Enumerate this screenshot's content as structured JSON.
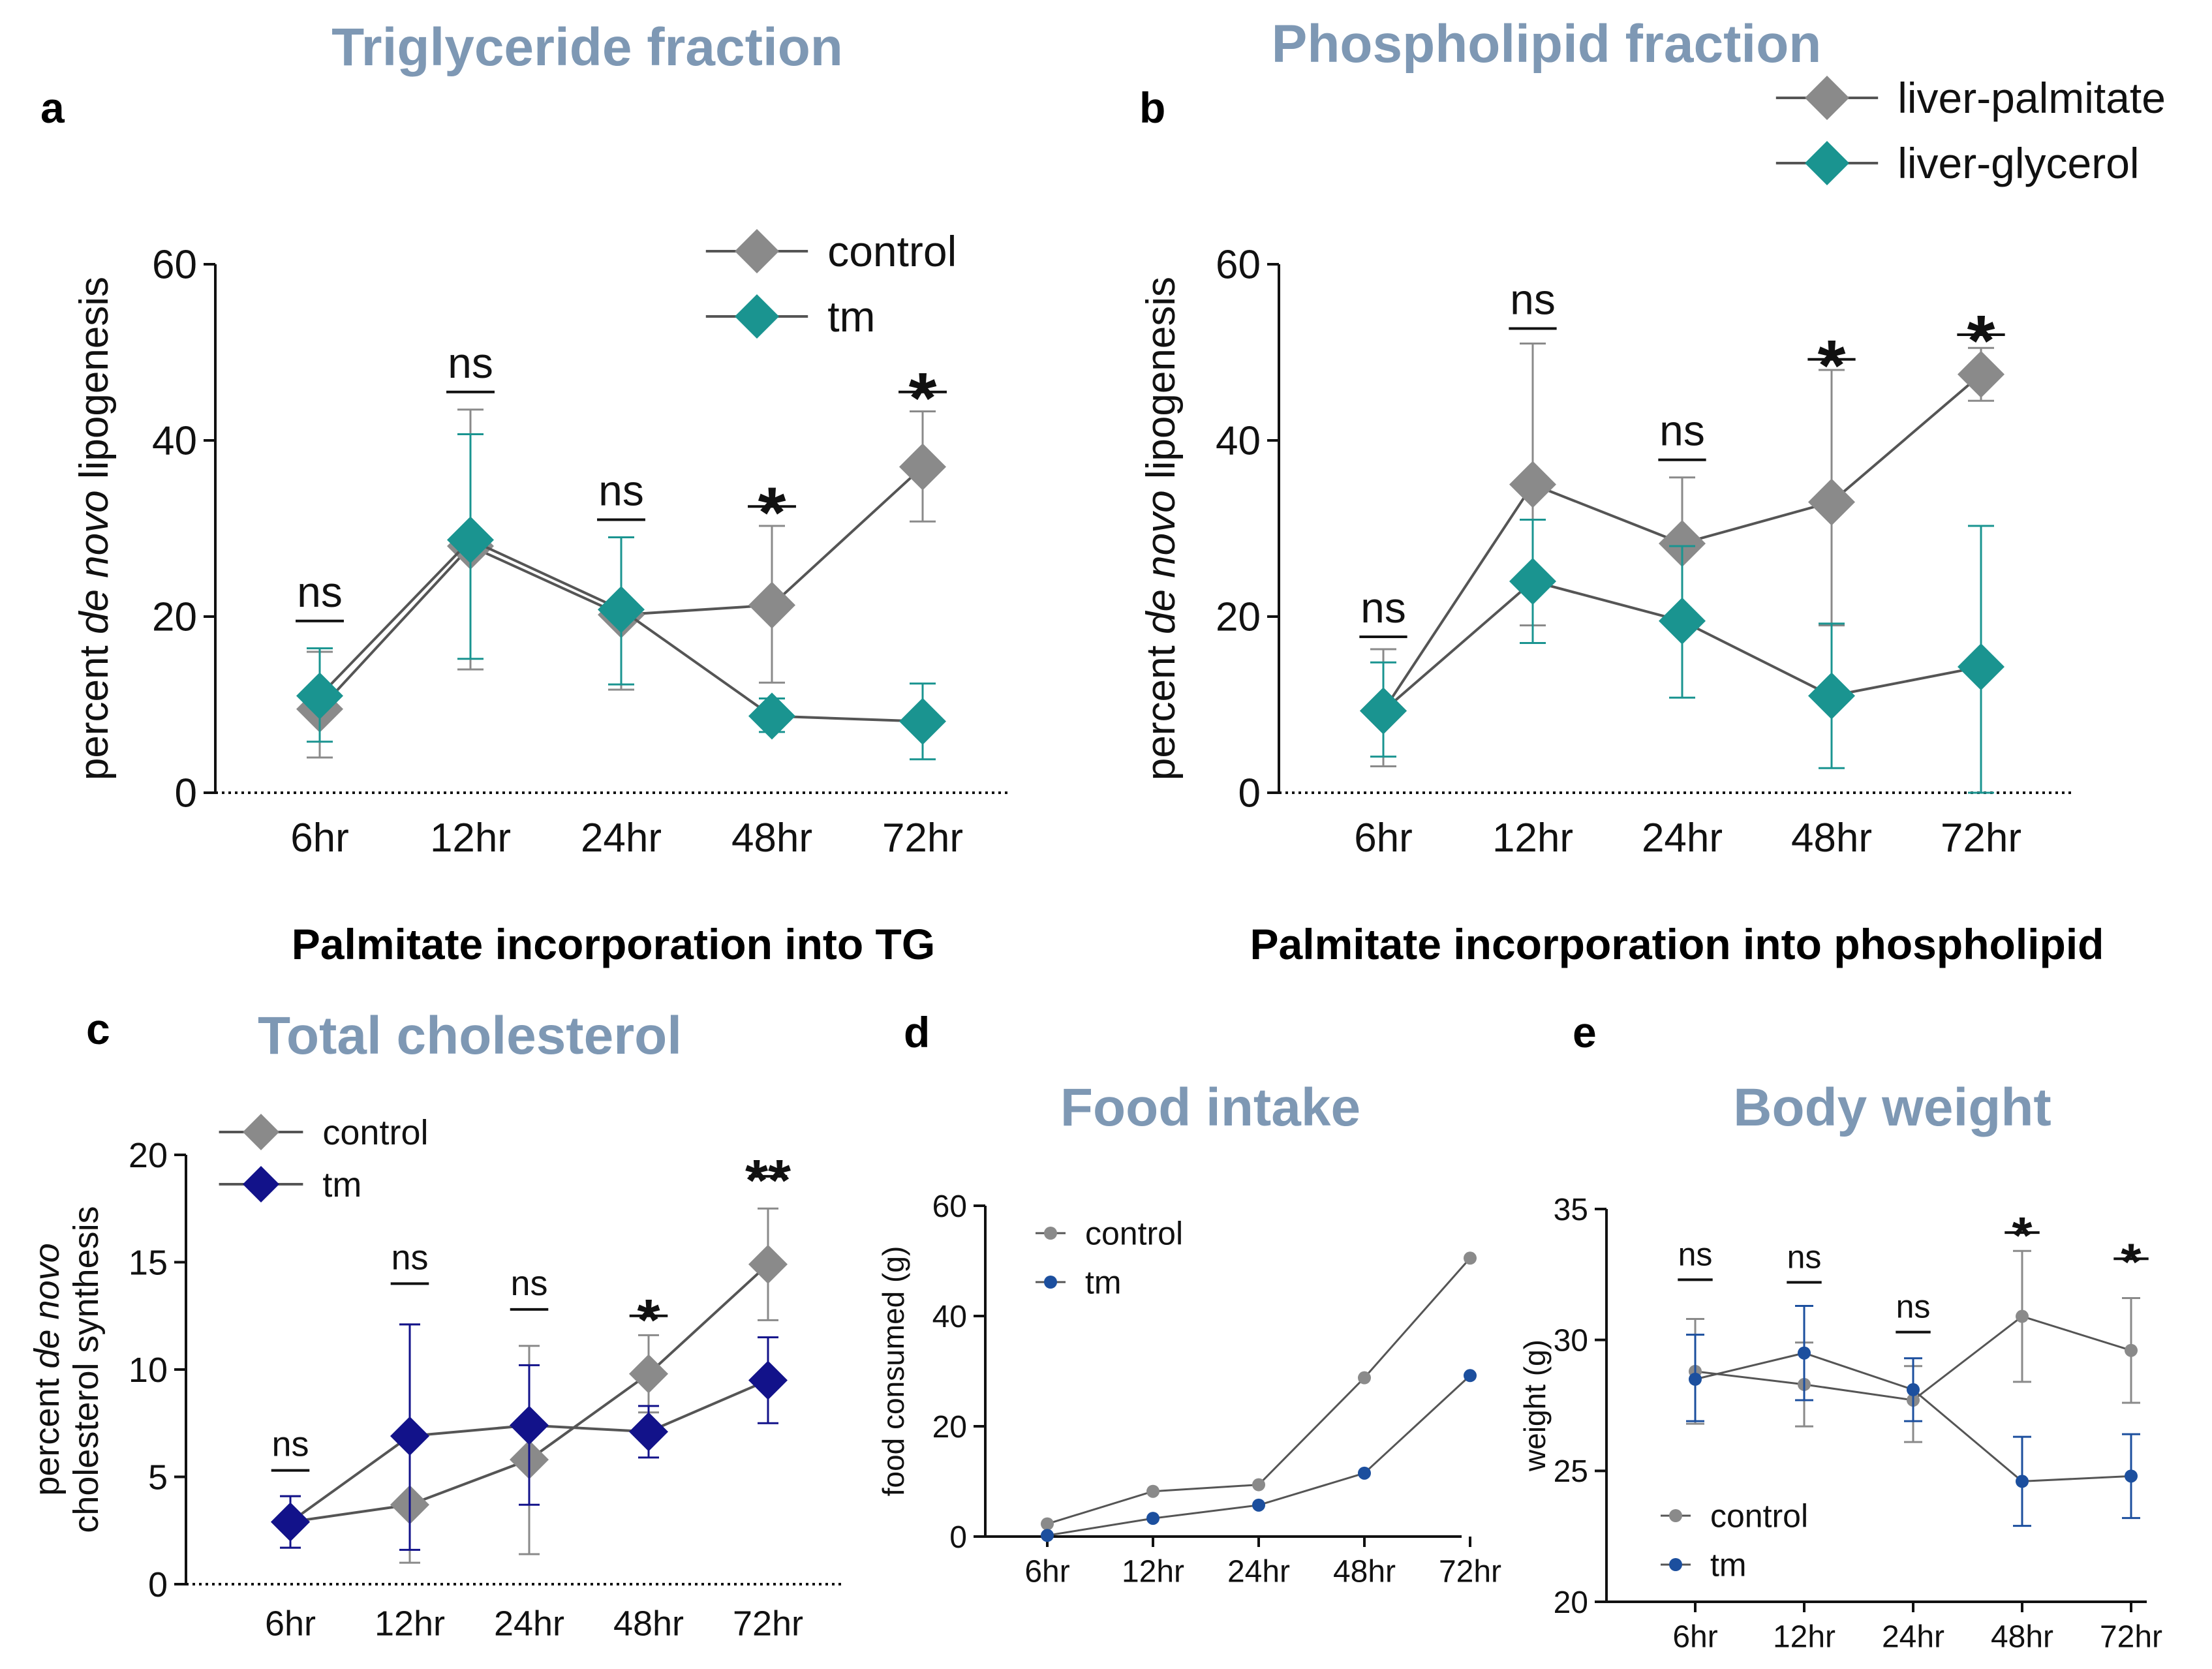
{
  "chart_data": [
    {
      "id": "a",
      "type": "line",
      "panel_label": "a",
      "title": "Triglyceride fraction",
      "xlabel": "Palmitate incorporation into TG",
      "ylabel_pre": "percent ",
      "ylabel_em": "de novo",
      "ylabel_post": " lipogenesis",
      "categories": [
        "6hr",
        "12hr",
        "24hr",
        "48hr",
        "72hr"
      ],
      "ylim": [
        0,
        60
      ],
      "yticks": [
        "0",
        "20",
        "40",
        "60"
      ],
      "ytick_values": [
        0,
        20,
        40,
        60
      ],
      "baseline": "dotted",
      "marker": "diamond",
      "series": [
        {
          "name": "control",
          "color": "#8a8a8a",
          "values": [
            9.5,
            28.0,
            20.2,
            21.3,
            37.0
          ],
          "err_up": [
            6.5,
            15.5,
            8.8,
            9.0,
            6.3
          ],
          "err_down": [
            5.5,
            14.0,
            8.5,
            8.8,
            6.2
          ]
        },
        {
          "name": "tm",
          "color": "#1a9490",
          "values": [
            11.0,
            28.7,
            20.8,
            8.7,
            8.1
          ],
          "err_up": [
            5.4,
            12.0,
            8.2,
            2.0,
            4.3
          ],
          "err_down": [
            5.2,
            13.5,
            8.5,
            1.8,
            4.3
          ]
        }
      ],
      "significance": [
        "ns",
        "ns",
        "ns",
        "*",
        "*"
      ],
      "sig_values": [
        19.5,
        45.5,
        31.0,
        32.5,
        45.5
      ],
      "legend": "top-right"
    },
    {
      "id": "b",
      "type": "line",
      "panel_label": "b",
      "title": "Phospholipid fraction",
      "xlabel": "Palmitate incorporation into phospholipid",
      "ylabel_pre": "percent ",
      "ylabel_em": "de novo",
      "ylabel_post": " lipogenesis",
      "categories": [
        "6hr",
        "12hr",
        "24hr",
        "48hr",
        "72hr"
      ],
      "ylim": [
        0,
        60
      ],
      "yticks": [
        "0",
        "20",
        "40",
        "60"
      ],
      "ytick_values": [
        0,
        20,
        40,
        60
      ],
      "baseline": "dotted",
      "marker": "diamond",
      "series": [
        {
          "name": "liver-palmitate",
          "color": "#8a8a8a",
          "values": [
            9.3,
            35.0,
            28.3,
            33.0,
            47.5
          ],
          "err_up": [
            7.0,
            16.0,
            7.5,
            15.0,
            3.0
          ],
          "err_down": [
            6.3,
            16.0,
            9.0,
            14.0,
            3.0
          ]
        },
        {
          "name": "liver-glycerol",
          "color": "#1a9490",
          "values": [
            9.3,
            24.0,
            19.5,
            11.0,
            14.3
          ],
          "err_up": [
            5.5,
            7.0,
            8.5,
            8.2,
            16.0
          ],
          "err_down": [
            5.2,
            7.0,
            8.7,
            8.2,
            14.3
          ]
        }
      ],
      "significance": [
        "ns",
        "ns",
        "ns",
        "*",
        "*"
      ],
      "sig_values": [
        17.7,
        52.7,
        37.8,
        49.2,
        52.0
      ],
      "legend": "top-right outside"
    },
    {
      "id": "c",
      "type": "line",
      "panel_label": "c",
      "title": "Total cholesterol",
      "xlabel": "",
      "ylabel_pre": "percent ",
      "ylabel_em": "de novo",
      "ylabel_post": "",
      "ylabel_line2": "cholesterol synthesis",
      "categories": [
        "6hr",
        "12hr",
        "24hr",
        "48hr",
        "72hr"
      ],
      "ylim": [
        0,
        20
      ],
      "yticks": [
        "0",
        "5",
        "10",
        "15",
        "20"
      ],
      "ytick_values": [
        0,
        5,
        10,
        15,
        20
      ],
      "baseline": "dotted",
      "marker": "diamond",
      "series": [
        {
          "name": "control",
          "color": "#8a8a8a",
          "values": [
            2.9,
            3.7,
            5.8,
            9.8,
            14.9
          ],
          "err_up": [
            1.2,
            8.4,
            5.3,
            1.8,
            2.6
          ],
          "err_down": [
            1.2,
            2.7,
            4.4,
            1.8,
            2.6
          ]
        },
        {
          "name": "tm",
          "color": "#12128a",
          "values": [
            2.9,
            6.9,
            7.4,
            7.1,
            9.5
          ],
          "err_up": [
            1.2,
            5.2,
            2.8,
            1.2,
            2.0
          ],
          "err_down": [
            1.2,
            5.3,
            3.7,
            1.2,
            2.0
          ]
        }
      ],
      "significance": [
        "ns",
        "ns",
        "ns",
        "*",
        "**"
      ],
      "sig_values": [
        5.3,
        14.0,
        12.8,
        12.5,
        19.0
      ],
      "legend": "top-left"
    },
    {
      "id": "d",
      "type": "line",
      "panel_label": "d",
      "title": "Food intake",
      "xlabel": "",
      "ylabel": "food consumed (g)",
      "categories": [
        "6hr",
        "12hr",
        "24hr",
        "48hr",
        "72hr"
      ],
      "ylim": [
        0,
        60
      ],
      "yticks": [
        "0",
        "20",
        "40",
        "60"
      ],
      "ytick_values": [
        0,
        20,
        40,
        60
      ],
      "baseline": "solid",
      "marker": "circle",
      "series": [
        {
          "name": "control",
          "color": "#8a8a8a",
          "values": [
            2.3,
            8.2,
            9.4,
            28.8,
            50.5
          ]
        },
        {
          "name": "tm",
          "color": "#1c4f9e",
          "values": [
            0.2,
            3.3,
            5.7,
            11.5,
            29.2
          ]
        }
      ],
      "significance": [],
      "legend": "top-left"
    },
    {
      "id": "e",
      "type": "line",
      "panel_label": "e",
      "title": "Body weight",
      "xlabel": "",
      "ylabel": "weight (g)",
      "categories": [
        "6hr",
        "12hr",
        "24hr",
        "48hr",
        "72hr"
      ],
      "ylim": [
        20,
        35
      ],
      "yticks": [
        "20",
        "25",
        "30",
        "35"
      ],
      "ytick_values": [
        20,
        25,
        30,
        35
      ],
      "baseline": "solid",
      "marker": "circle",
      "series": [
        {
          "name": "control",
          "color": "#8a8a8a",
          "values": [
            28.8,
            28.3,
            27.7,
            30.9,
            29.6
          ],
          "err_up": [
            2.0,
            1.6,
            1.3,
            2.5,
            2.0
          ],
          "err_down": [
            2.0,
            1.6,
            1.6,
            2.5,
            2.0
          ]
        },
        {
          "name": "tm",
          "color": "#1c4f9e",
          "values": [
            28.5,
            29.5,
            28.1,
            24.6,
            24.8
          ],
          "err_up": [
            1.7,
            1.8,
            1.2,
            1.7,
            1.6
          ],
          "err_down": [
            1.6,
            1.8,
            1.2,
            1.7,
            1.6
          ]
        }
      ],
      "significance": [
        "ns",
        "ns",
        "ns",
        "*",
        "*"
      ],
      "sig_values": [
        32.3,
        32.2,
        30.3,
        34.1,
        33.1
      ],
      "legend": "bottom-left"
    }
  ]
}
